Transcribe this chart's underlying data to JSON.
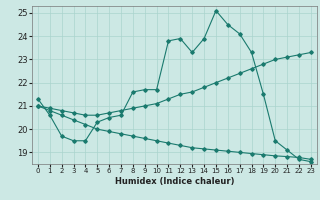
{
  "xlabel": "Humidex (Indice chaleur)",
  "xlim": [
    -0.5,
    23.5
  ],
  "ylim": [
    18.5,
    25.3
  ],
  "yticks": [
    19,
    20,
    21,
    22,
    23,
    24,
    25
  ],
  "xticks": [
    0,
    1,
    2,
    3,
    4,
    5,
    6,
    7,
    8,
    9,
    10,
    11,
    12,
    13,
    14,
    15,
    16,
    17,
    18,
    19,
    20,
    21,
    22,
    23
  ],
  "background_color": "#cce8e4",
  "grid_color": "#aad4ce",
  "line_color": "#1a7a6e",
  "series": {
    "top": [
      21.3,
      20.6,
      19.7,
      19.5,
      19.5,
      20.3,
      20.5,
      20.6,
      21.6,
      21.7,
      21.7,
      23.8,
      23.9,
      23.3,
      23.9,
      25.1,
      24.5,
      24.1,
      23.3,
      21.5,
      19.5,
      19.1,
      18.7,
      18.6
    ],
    "mid": [
      21.0,
      20.9,
      20.8,
      20.7,
      20.6,
      20.6,
      20.7,
      20.8,
      20.9,
      21.0,
      21.1,
      21.3,
      21.5,
      21.6,
      21.8,
      22.0,
      22.2,
      22.4,
      22.6,
      22.8,
      23.0,
      23.1,
      23.2,
      23.3
    ],
    "bot": [
      21.0,
      20.8,
      20.6,
      20.4,
      20.2,
      20.0,
      19.9,
      19.8,
      19.7,
      19.6,
      19.5,
      19.4,
      19.3,
      19.2,
      19.15,
      19.1,
      19.05,
      19.0,
      18.95,
      18.9,
      18.85,
      18.82,
      18.78,
      18.7
    ]
  }
}
